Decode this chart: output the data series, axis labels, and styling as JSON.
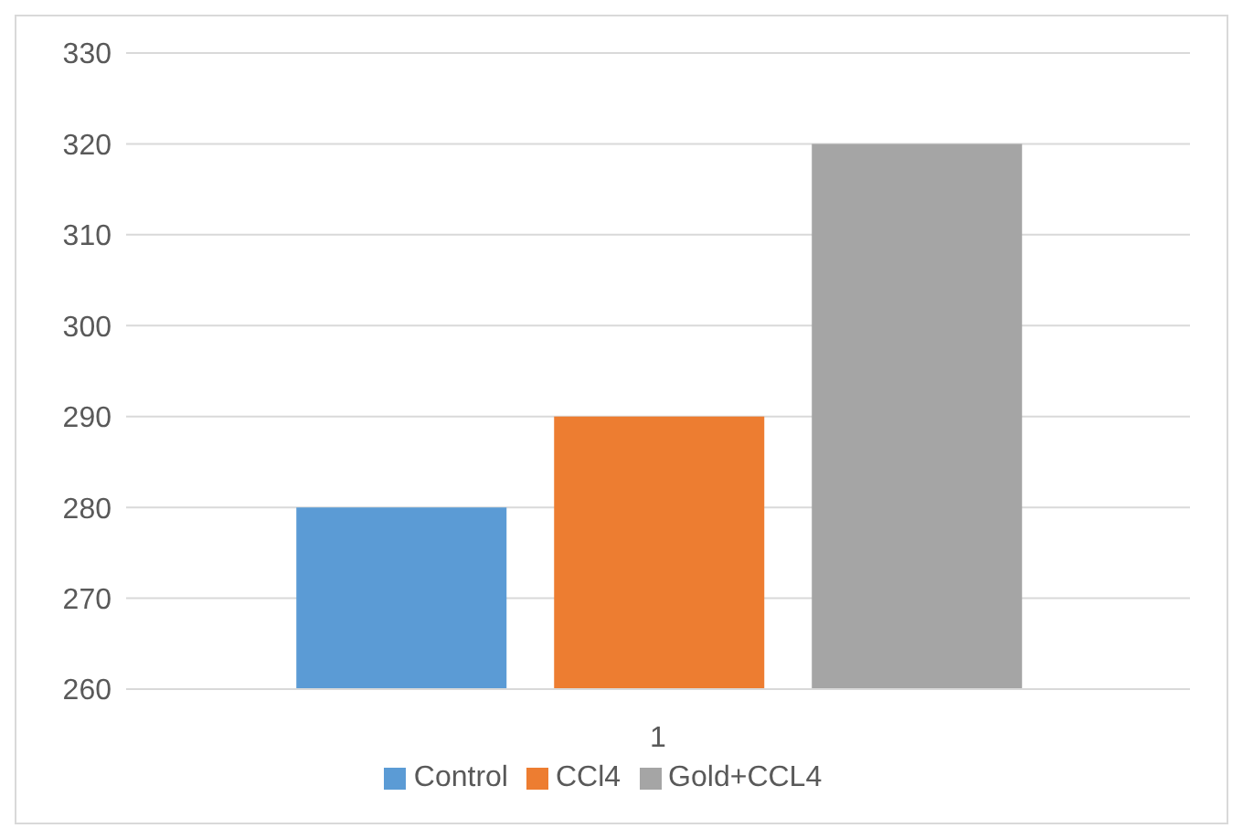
{
  "chart_data": {
    "type": "bar",
    "categories": [
      "1"
    ],
    "series": [
      {
        "name": "Control",
        "color": "#5b9bd5",
        "values": [
          280
        ]
      },
      {
        "name": "CCl4",
        "color": "#ed7d31",
        "values": [
          290
        ]
      },
      {
        "name": "Gold+CCL4",
        "color": "#a5a5a5",
        "values": [
          320
        ]
      }
    ],
    "ylim": [
      260,
      330
    ],
    "yticks": [
      260,
      270,
      280,
      290,
      300,
      310,
      320,
      330
    ],
    "grid": "y",
    "legend": "bottom"
  }
}
